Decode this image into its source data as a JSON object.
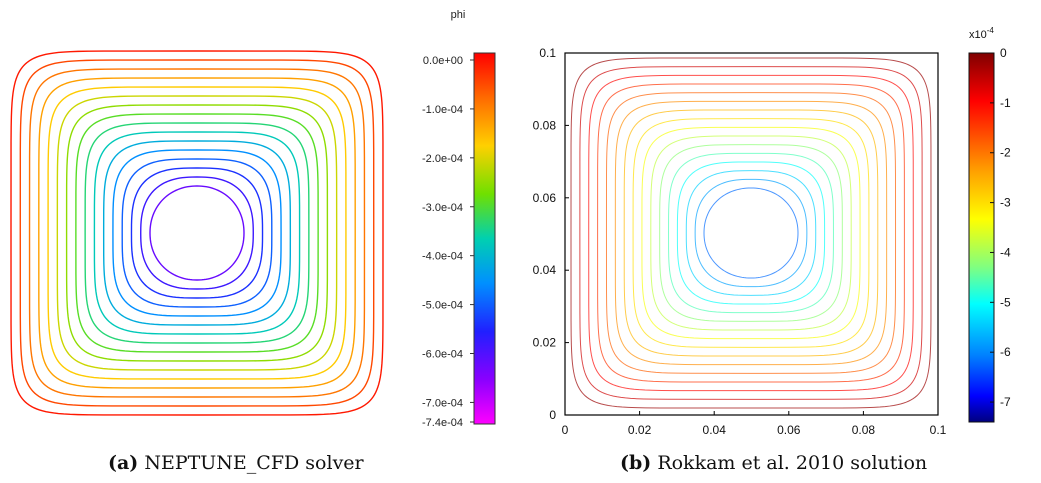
{
  "figure": {
    "caption_a": {
      "label": "(a)",
      "text": "NEPTUNE_CFD solver"
    },
    "caption_b": {
      "label": "(b)",
      "text": "Rokkam et al. 2010 solution"
    }
  },
  "chart_data": [
    {
      "type": "contour",
      "panel": "a",
      "colorbar_title": "phi",
      "colorbar_ticks": [
        "0.0e+00",
        "-1.0e-04",
        "-2.0e-04",
        "-3.0e-04",
        "-4.0e-04",
        "-5.0e-04",
        "-6.0e-04",
        "-7.0e-04",
        "-7.4e-04"
      ],
      "colorbar_range": [
        -0.00074,
        0
      ],
      "colormap": "rainbow (red at 0, magenta at minimum)",
      "contour_levels": [
        -2e-05,
        -6e-05,
        -0.0001,
        -0.00014,
        -0.00018,
        -0.00022,
        -0.00026,
        -0.0003,
        -0.00034,
        -0.00038,
        -0.00042,
        -0.00046,
        -0.0005,
        -0.00054,
        -0.00058,
        -0.00062
      ],
      "axes_visible": false
    },
    {
      "type": "contour",
      "panel": "b",
      "xlim": [
        0,
        0.1
      ],
      "ylim": [
        0,
        0.1
      ],
      "x_ticks": [
        "0",
        "0.02",
        "0.04",
        "0.06",
        "0.08",
        "0.1"
      ],
      "y_ticks": [
        "0",
        "0.02",
        "0.04",
        "0.06",
        "0.08",
        "0.1"
      ],
      "colorbar_multiplier": "x10",
      "colorbar_exponent": "-4",
      "colorbar_ticks": [
        "0",
        "-1",
        "-2",
        "-3",
        "-4",
        "-5",
        "-6",
        "-7"
      ],
      "colorbar_range": [
        -7.4,
        0
      ],
      "colormap": "jet (dark red at 0, dark blue at minimum)",
      "contour_levels": [
        -0.2,
        -0.6,
        -1.0,
        -1.4,
        -1.8,
        -2.2,
        -2.6,
        -3.0,
        -3.4,
        -3.8,
        -4.2,
        -4.6,
        -5.0,
        -5.4,
        -5.8,
        -6.2
      ],
      "line_opacity": 0.7
    }
  ]
}
